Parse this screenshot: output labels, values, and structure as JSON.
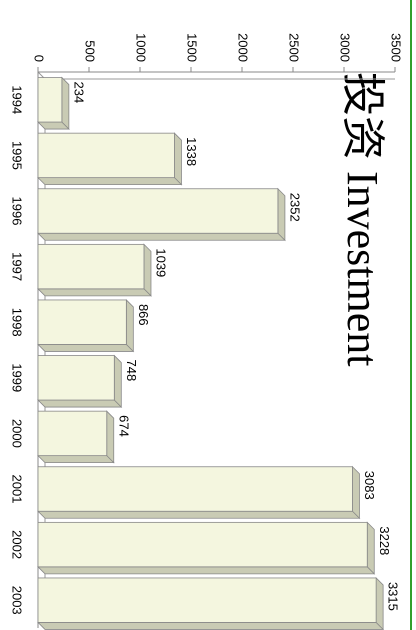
{
  "chart_data": {
    "type": "bar",
    "title": "投资 Investment",
    "categories": [
      "1994",
      "1995",
      "1996",
      "1997",
      "1998",
      "1999",
      "2000",
      "2001",
      "2002",
      "2003"
    ],
    "values": [
      234,
      1338,
      2352,
      1039,
      866,
      748,
      674,
      3083,
      3228,
      3315
    ],
    "color": "#f4f6df",
    "ylim": [
      0,
      3500
    ],
    "yticks": [
      0,
      500,
      1000,
      1500,
      2000,
      2500,
      3000,
      3500
    ],
    "grid": false
  }
}
